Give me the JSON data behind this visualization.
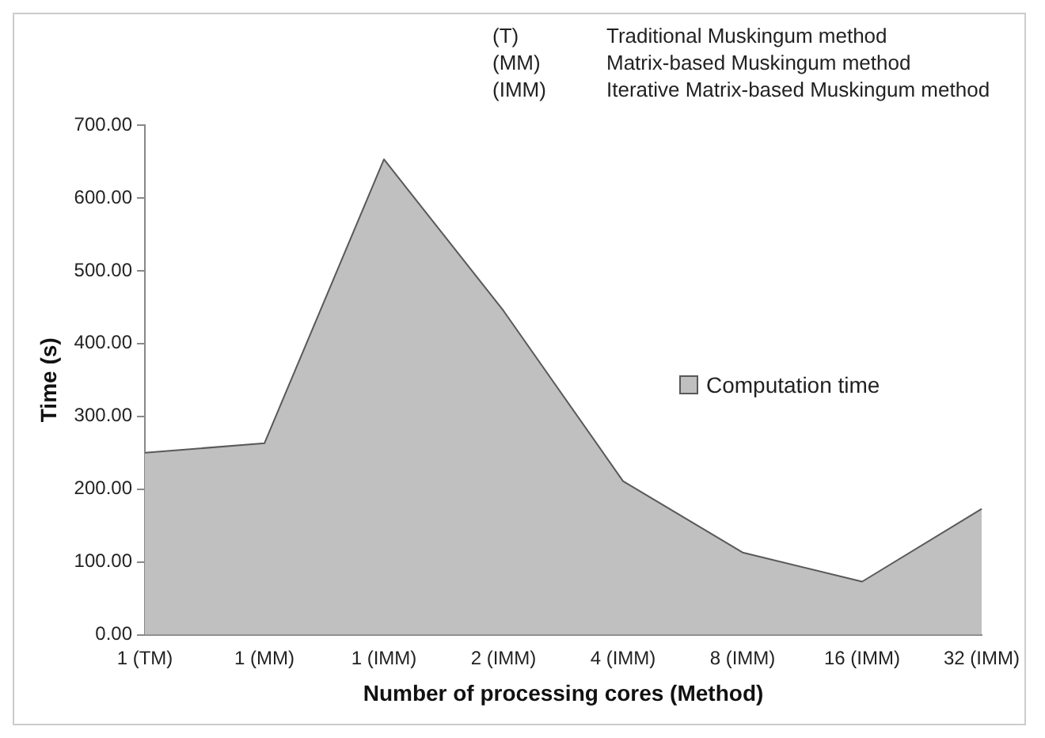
{
  "chart_data": {
    "type": "area",
    "xlabel": "Number of processing cores (Method)",
    "ylabel": "Time (s)",
    "categories": [
      "1 (TM)",
      "1 (MM)",
      "1 (IMM)",
      "2 (IMM)",
      "4 (IMM)",
      "8 (IMM)",
      "16 (IMM)",
      "32 (IMM)"
    ],
    "series": [
      {
        "name": "Computation time",
        "color": "#c0c0c0",
        "values": [
          250,
          263,
          653,
          445,
          211,
          113,
          73,
          173
        ]
      }
    ],
    "ylim": [
      0,
      700
    ],
    "yticks": [
      {
        "value": 0,
        "label": "0.00"
      },
      {
        "value": 100,
        "label": "100.00"
      },
      {
        "value": 200,
        "label": "200.00"
      },
      {
        "value": 300,
        "label": "300.00"
      },
      {
        "value": 400,
        "label": "400.00"
      },
      {
        "value": 500,
        "label": "500.00"
      },
      {
        "value": 600,
        "label": "600.00"
      },
      {
        "value": 700,
        "label": "700.00"
      }
    ],
    "grid": false,
    "legend": "right",
    "annotations": [
      [
        "(T)",
        "Traditional Muskingum method"
      ],
      [
        "(MM)",
        "Matrix-based Muskingum method"
      ],
      [
        "(IMM)",
        "Iterative Matrix-based Muskingum method"
      ]
    ]
  }
}
